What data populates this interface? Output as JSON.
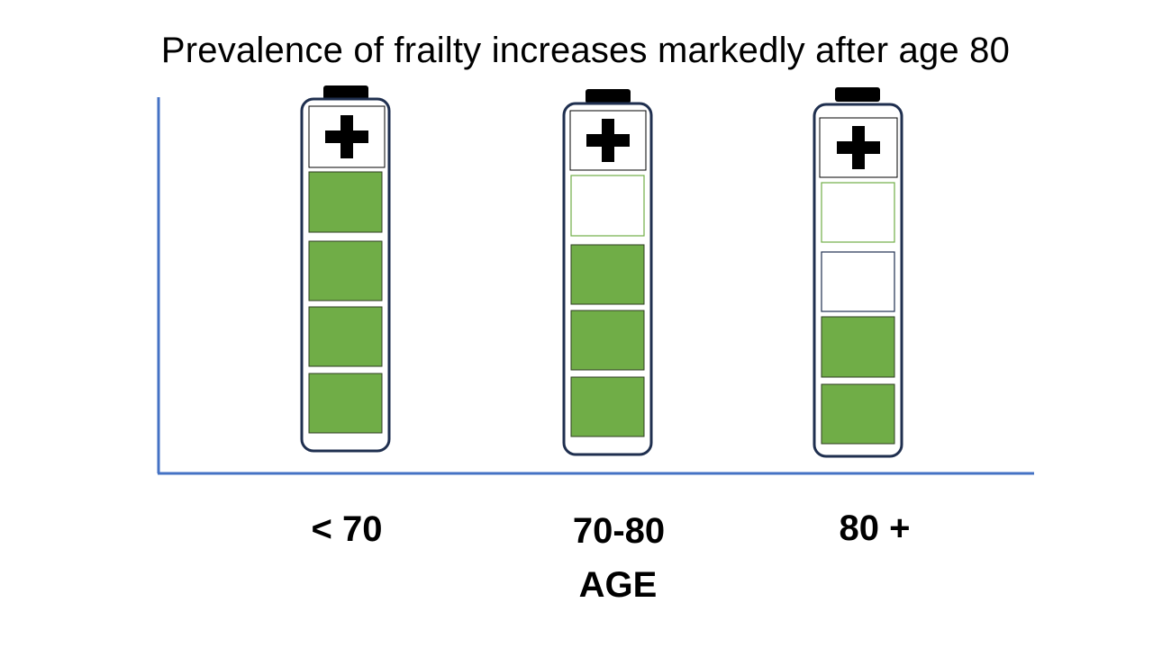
{
  "chart_data": {
    "type": "bar",
    "title": "Prevalence of frailty increases markedly after age 80",
    "xlabel": "AGE",
    "ylabel": "",
    "categories": [
      "< 70",
      "70-80",
      "80 +"
    ],
    "series": [
      {
        "values": [
          4,
          3,
          2
        ]
      }
    ],
    "cells_per_battery": 4,
    "ylim": [
      0,
      4
    ],
    "grid": false,
    "battery_icon": "plus-icon",
    "colors": {
      "fill": "#70AD47",
      "fill_border": "#2E3B22",
      "empty_border_green": "#70AD47",
      "empty_border_dark": "#1F2F4F",
      "battery_outline": "#1F2F4F",
      "axis": "#4472C4"
    }
  }
}
